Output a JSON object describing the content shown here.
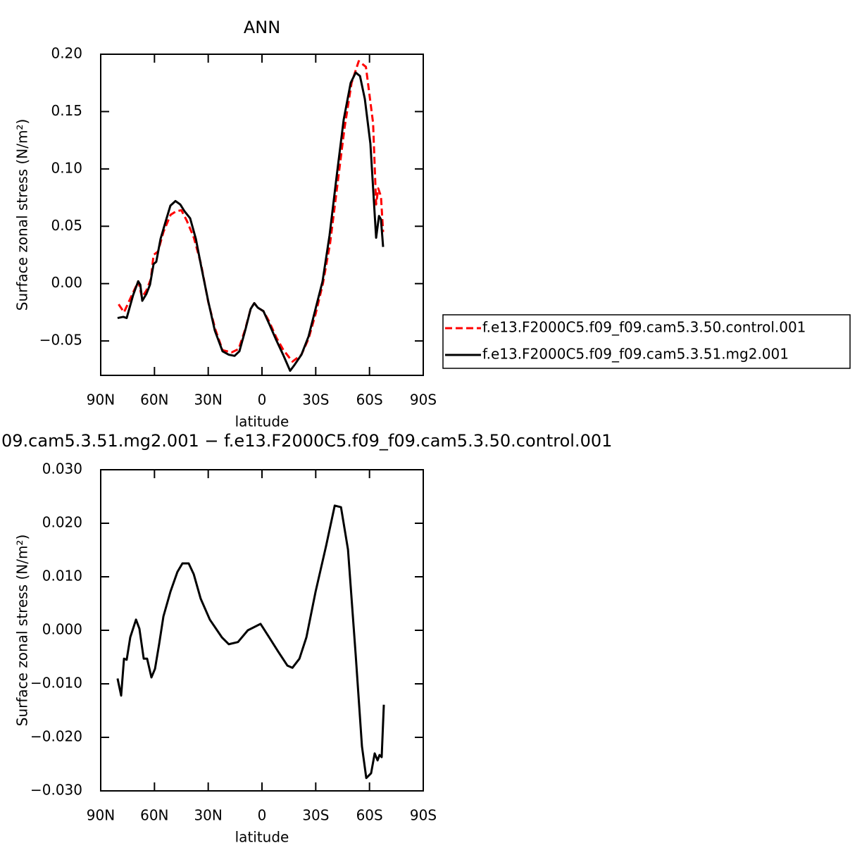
{
  "chart_data": [
    {
      "type": "line",
      "title": "ANN",
      "xlabel": "latitude",
      "ylabel": "Surface zonal stress (N/m²)",
      "xlim": [
        90,
        -90
      ],
      "xticks": [
        {
          "value": 90,
          "label": "90N"
        },
        {
          "value": 60,
          "label": "60N"
        },
        {
          "value": 30,
          "label": "30N"
        },
        0,
        {
          "value": -30,
          "label": "30S"
        },
        {
          "value": -60,
          "label": "60S"
        },
        {
          "value": -90,
          "label": "90S"
        }
      ],
      "ylim": [
        -0.08,
        0.2
      ],
      "yticks": [
        {
          "value": -0.05,
          "label": "−0.05"
        },
        {
          "value": 0,
          "label": "0.00"
        },
        0.05,
        {
          "value": 0.1,
          "label": "0.10"
        },
        0.15,
        {
          "value": 0.2,
          "label": "0.20"
        }
      ],
      "series": [
        {
          "name": "f.e13.F2000C5.f09_f09.cam5.3.50.control.001",
          "color": "#ff0000",
          "line_style": "dashed",
          "x": [
            80,
            77,
            72,
            69,
            67,
            64.5,
            62,
            60.5,
            58,
            55,
            51,
            48,
            45,
            42,
            38,
            34,
            30,
            26,
            22,
            17,
            13,
            9.4,
            6.3,
            4.3,
            2.3,
            -0.8,
            -4,
            -8,
            -12,
            -17,
            -22,
            -26,
            -30,
            -34,
            -38,
            -42,
            -46,
            -50,
            -54,
            -58,
            -62,
            -63.7,
            -64.9,
            -66.4,
            -67.6
          ],
          "values": [
            -0.018,
            -0.025,
            -0.008,
            0.002,
            -0.012,
            -0.006,
            0.004,
            0.025,
            0.028,
            0.045,
            0.06,
            0.063,
            0.064,
            0.055,
            0.04,
            0.017,
            -0.016,
            -0.04,
            -0.058,
            -0.06,
            -0.057,
            -0.04,
            -0.022,
            -0.017,
            -0.021,
            -0.024,
            -0.033,
            -0.047,
            -0.058,
            -0.068,
            -0.062,
            -0.048,
            -0.026,
            0.0,
            0.035,
            0.085,
            0.135,
            0.175,
            0.194,
            0.189,
            0.14,
            0.069,
            0.083,
            0.076,
            0.045
          ]
        },
        {
          "name": "f.e13.F2000C5.f09_f09.cam5.3.51.mg2.001",
          "color": "#000000",
          "line_style": "solid",
          "x": [
            80.6,
            77.4,
            75.5,
            71.9,
            69.1,
            67.9,
            66.8,
            64.5,
            62.5,
            60.5,
            59,
            56.6,
            53.8,
            51.1,
            48.3,
            45.6,
            43.2,
            40.1,
            36.9,
            33.8,
            29.9,
            26.3,
            22,
            18.5,
            15.3,
            12.6,
            9.4,
            6.3,
            4.3,
            2.3,
            -0.8,
            -4,
            -7.9,
            -11.8,
            -15.7,
            -18.1,
            -22,
            -26,
            -29.9,
            -33.8,
            -37.7,
            -41.7,
            -45.6,
            -49.5,
            -52.3,
            -54.7,
            -57.4,
            -60.5,
            -63.7,
            -65.3,
            -66.4,
            -67.6
          ],
          "values": [
            -0.03,
            -0.029,
            -0.03,
            -0.01,
            0.002,
            -0.001,
            -0.015,
            -0.009,
            -0.001,
            0.017,
            0.019,
            0.039,
            0.054,
            0.068,
            0.072,
            0.069,
            0.063,
            0.057,
            0.039,
            0.014,
            -0.016,
            -0.041,
            -0.059,
            -0.062,
            -0.063,
            -0.059,
            -0.041,
            -0.022,
            -0.017,
            -0.021,
            -0.024,
            -0.035,
            -0.049,
            -0.062,
            -0.076,
            -0.071,
            -0.062,
            -0.046,
            -0.022,
            0.002,
            0.042,
            0.094,
            0.143,
            0.175,
            0.184,
            0.181,
            0.161,
            0.122,
            0.04,
            0.059,
            0.056,
            0.032
          ]
        }
      ]
    },
    {
      "type": "line",
      "title": "09.cam5.3.51.mg2.001 − f.e13.F2000C5.f09_f09.cam5.3.50.control.001",
      "xlabel": "latitude",
      "ylabel": "Surface zonal stress (N/m²)",
      "xlim": [
        90,
        -90
      ],
      "xticks": [
        {
          "value": 90,
          "label": "90N"
        },
        {
          "value": 60,
          "label": "60N"
        },
        {
          "value": 30,
          "label": "30N"
        },
        0,
        {
          "value": -30,
          "label": "30S"
        },
        {
          "value": -60,
          "label": "60S"
        },
        {
          "value": -90,
          "label": "90S"
        }
      ],
      "ylim": [
        -0.03,
        0.03
      ],
      "yticks": [
        {
          "value": -0.03,
          "label": "−0.030"
        },
        {
          "value": -0.02,
          "label": "−0.020"
        },
        {
          "value": -0.01,
          "label": "−0.010"
        },
        {
          "value": 0,
          "label": "0.000"
        },
        {
          "value": 0.01,
          "label": "0.010"
        },
        {
          "value": 0.02,
          "label": "0.020"
        },
        {
          "value": 0.03,
          "label": "0.030"
        }
      ],
      "series": [
        {
          "color": "#000000",
          "line_style": "solid",
          "x": [
            80.6,
            78.6,
            77,
            75.5,
            73.5,
            70.3,
            68.4,
            66,
            64.1,
            61.7,
            59.7,
            57.4,
            55,
            51.1,
            47.2,
            44.4,
            40.9,
            38.1,
            34.2,
            29.1,
            22.4,
            18.5,
            13.4,
            7.9,
            0.8,
            -4,
            -9.1,
            -14.2,
            -17,
            -20.9,
            -24.8,
            -29.9,
            -35.8,
            -40.6,
            -44.1,
            -48,
            -52.3,
            -55.8,
            -58.2,
            -60.9,
            -62.9,
            -64.5,
            -65.6,
            -66.8,
            -68
          ],
          "values": [
            -0.009,
            -0.0122,
            -0.0053,
            -0.0055,
            -0.0013,
            0.002,
            0.0003,
            -0.0053,
            -0.0053,
            -0.0088,
            -0.0072,
            -0.0026,
            0.0026,
            0.0072,
            0.0109,
            0.0125,
            0.0125,
            0.0105,
            0.0059,
            0.002,
            -0.0013,
            -0.0026,
            -0.0022,
            0,
            0.0012,
            -0.0013,
            -0.004,
            -0.0066,
            -0.007,
            -0.0053,
            -0.0013,
            0.0072,
            0.0158,
            0.0233,
            0.023,
            0.0151,
            -0.0046,
            -0.0217,
            -0.0276,
            -0.0267,
            -0.023,
            -0.0243,
            -0.0233,
            -0.0237,
            -0.0139
          ]
        }
      ]
    }
  ]
}
